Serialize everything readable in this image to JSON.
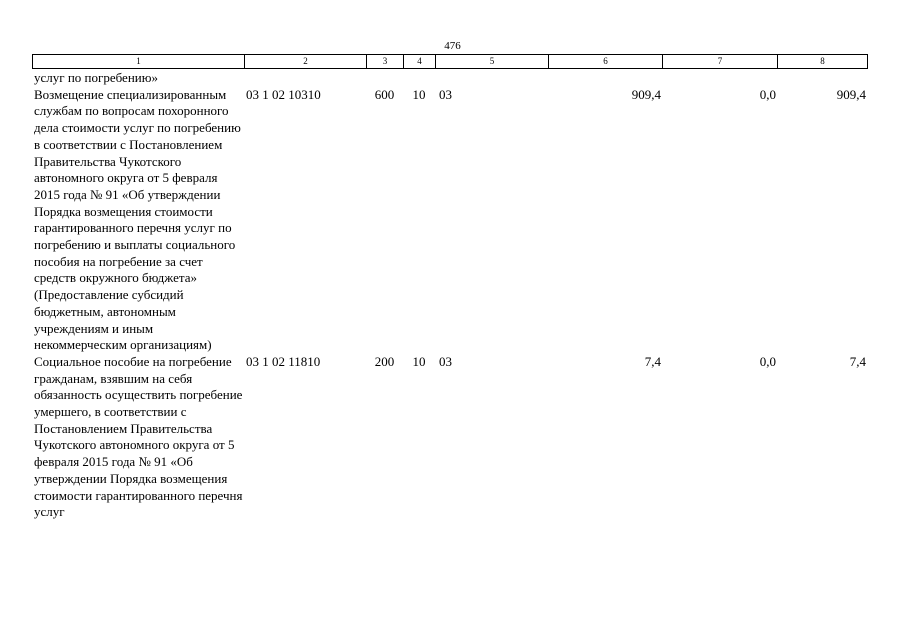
{
  "page_number": "476",
  "column_headers": [
    "1",
    "2",
    "3",
    "4",
    "5",
    "6",
    "7",
    "8"
  ],
  "rows": [
    {
      "description": "услуг по погребению»",
      "code": "",
      "type": "",
      "section": "",
      "subsection": "",
      "amount": "",
      "change": "",
      "total": ""
    },
    {
      "description": "Возмещение специализированным службам по вопросам похоронного дела стоимости услуг по погребению в соответствии с Постановлением Правительства Чукотского автономного округа от 5 февраля 2015 года № 91 «Об утверждении Порядка возмещения стоимости гарантированного перечня услуг по погребению и выплаты социального пособия на погребение за счет средств окружного бюджета» (Предоставление субсидий бюджетным, автономным учреждениям и иным некоммерческим организациям)",
      "code": "03 1 02 10310",
      "type": "600",
      "section": "10",
      "subsection": "03",
      "amount": "909,4",
      "change": "0,0",
      "total": "909,4"
    },
    {
      "description": "Социальное пособие на погребение гражданам, взявшим на себя обязанность осуществить погребение умершего, в соответствии с Постановлением Правительства Чукотского автономного округа от 5 февраля 2015 года № 91 «Об утверждении Порядка возмещения стоимости гарантированного перечня услуг",
      "code": "03 1 02 11810",
      "type": "200",
      "section": "10",
      "subsection": "03",
      "amount": "7,4",
      "change": "0,0",
      "total": "7,4"
    }
  ]
}
